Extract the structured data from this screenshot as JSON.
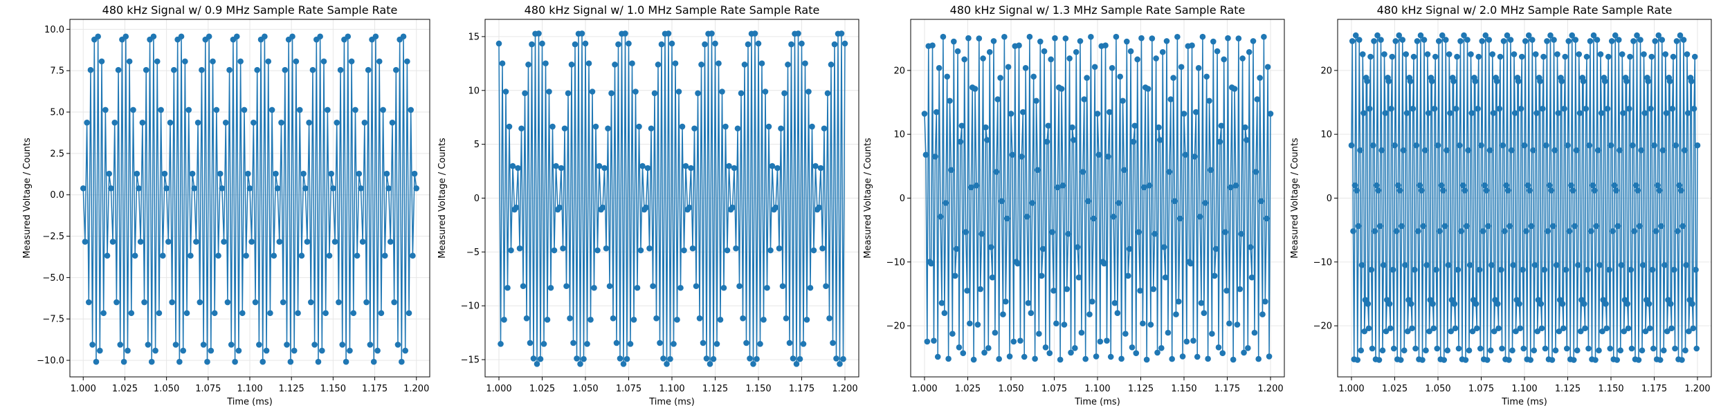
{
  "chart_data": [
    {
      "type": "line",
      "title": "480 kHz Signal w/ 0.9 MHz Sample Rate Sample Rate",
      "xlabel": "Time (ms)",
      "ylabel": "Measured Voltage / Counts",
      "xlim": [
        0.992,
        1.208
      ],
      "ylim": [
        -11.0,
        10.6
      ],
      "xticks": [
        1.0,
        1.025,
        1.05,
        1.075,
        1.1,
        1.125,
        1.15,
        1.175,
        1.2
      ],
      "xtick_labels": [
        "1.000",
        "1.025",
        "1.050",
        "1.075",
        "1.100",
        "1.125",
        "1.150",
        "1.175",
        "1.200"
      ],
      "yticks": [
        -10.0,
        -7.5,
        -5.0,
        -2.5,
        0.0,
        2.5,
        5.0,
        7.5,
        10.0
      ],
      "ytick_labels": [
        "−10.0",
        "−7.5",
        "−5.0",
        "−2.5",
        "0.0",
        "2.5",
        "5.0",
        "7.5",
        "10.0"
      ],
      "grid": true,
      "color": "#1f77b4",
      "marker": "circle",
      "x_start": 1.0,
      "x_end": 1.2,
      "sample_rate_mhz": 0.9,
      "signal_khz": 480,
      "amplitude": 9.9,
      "offset": -0.2,
      "phase": 0.06
    },
    {
      "type": "line",
      "title": "480 kHz Signal w/ 1.0 MHz Sample Rate Sample Rate",
      "xlabel": "Time (ms)",
      "ylabel": "Measured Voltage / Counts",
      "xlim": [
        0.992,
        1.208
      ],
      "ylim": [
        -16.6,
        16.6
      ],
      "xticks": [
        1.0,
        1.025,
        1.05,
        1.075,
        1.1,
        1.125,
        1.15,
        1.175,
        1.2
      ],
      "xtick_labels": [
        "1.000",
        "1.025",
        "1.050",
        "1.075",
        "1.100",
        "1.125",
        "1.150",
        "1.175",
        "1.200"
      ],
      "yticks": [
        -15,
        -10,
        -5,
        0,
        5,
        10,
        15
      ],
      "ytick_labels": [
        "−15",
        "−10",
        "−5",
        "0",
        "5",
        "10",
        "15"
      ],
      "grid": true,
      "color": "#1f77b4",
      "marker": "circle",
      "x_start": 1.0,
      "x_end": 1.2,
      "sample_rate_mhz": 1.0,
      "signal_khz": 480,
      "amplitude": 15.4,
      "offset": 0.0,
      "phase": 1.2
    },
    {
      "type": "line",
      "title": "480 kHz Signal w/ 1.3 MHz Sample Rate Sample Rate",
      "xlabel": "Time (ms)",
      "ylabel": "Measured Voltage / Counts",
      "xlim": [
        0.992,
        1.208
      ],
      "ylim": [
        -28.0,
        28.0
      ],
      "xticks": [
        1.0,
        1.025,
        1.05,
        1.075,
        1.1,
        1.125,
        1.15,
        1.175,
        1.2
      ],
      "xtick_labels": [
        "1.000",
        "1.025",
        "1.050",
        "1.075",
        "1.100",
        "1.125",
        "1.150",
        "1.175",
        "1.200"
      ],
      "yticks": [
        -20,
        -10,
        0,
        10,
        20
      ],
      "ytick_labels": [
        "−20",
        "−10",
        "0",
        "10",
        "20"
      ],
      "grid": true,
      "color": "#1f77b4",
      "marker": "circle",
      "x_start": 1.0,
      "x_end": 1.2,
      "sample_rate_mhz": 1.3,
      "signal_khz": 480,
      "amplitude": 25.3,
      "offset": 0.0,
      "phase": 0.55
    },
    {
      "type": "line",
      "title": "480 kHz Signal w/ 2.0 MHz Sample Rate Sample Rate",
      "xlabel": "Time (ms)",
      "ylabel": "Measured Voltage / Counts",
      "xlim": [
        0.992,
        1.208
      ],
      "ylim": [
        -28.0,
        28.0
      ],
      "xticks": [
        1.0,
        1.025,
        1.05,
        1.075,
        1.1,
        1.125,
        1.15,
        1.175,
        1.2
      ],
      "xtick_labels": [
        "1.000",
        "1.025",
        "1.050",
        "1.075",
        "1.100",
        "1.125",
        "1.150",
        "1.175",
        "1.200"
      ],
      "yticks": [
        -20,
        -10,
        0,
        10,
        20
      ],
      "ytick_labels": [
        "−20",
        "−10",
        "0",
        "10",
        "20"
      ],
      "grid": true,
      "color": "#1f77b4",
      "marker": "circle",
      "x_start": 1.0,
      "x_end": 1.2,
      "sample_rate_mhz": 2.0,
      "signal_khz": 480,
      "amplitude": 25.5,
      "offset": 0.0,
      "phase": 0.33
    }
  ]
}
